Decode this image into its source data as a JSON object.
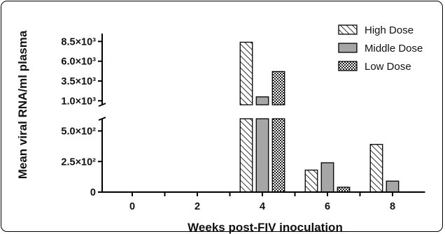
{
  "chart_data": {
    "type": "bar",
    "xlabel": "Weeks post-FIV inoculation",
    "ylabel": "Mean viral RNA/ml plasma",
    "categories": [
      "0",
      "2",
      "4",
      "6",
      "8"
    ],
    "y_axis_break": true,
    "ylim_lower": [
      0,
      600
    ],
    "ylim_upper": [
      500,
      9500
    ],
    "lower_ticks": [
      {
        "value": 0,
        "label": "0"
      },
      {
        "value": 250,
        "label": "2.5×10²"
      },
      {
        "value": 500,
        "label": "5.0×10²"
      }
    ],
    "upper_ticks": [
      {
        "value": 1000,
        "label": "1.0×10³"
      },
      {
        "value": 3500,
        "label": "3.5×10³"
      },
      {
        "value": 6000,
        "label": "6.0×10³"
      },
      {
        "value": 8500,
        "label": "8.5×10³"
      }
    ],
    "series": [
      {
        "name": "High Dose",
        "pattern": "diagonal-hatch",
        "color": "#ffffff",
        "values": [
          0,
          0,
          8400,
          180,
          390
        ]
      },
      {
        "name": "Middle Dose",
        "pattern": "solid",
        "color": "#a6a6a6",
        "values": [
          0,
          0,
          1500,
          240,
          90
        ]
      },
      {
        "name": "Low Dose",
        "pattern": "checker",
        "color": "#ffffff",
        "values": [
          0,
          0,
          4700,
          40,
          0
        ]
      }
    ],
    "legend_position": "top-right",
    "grid": false
  }
}
